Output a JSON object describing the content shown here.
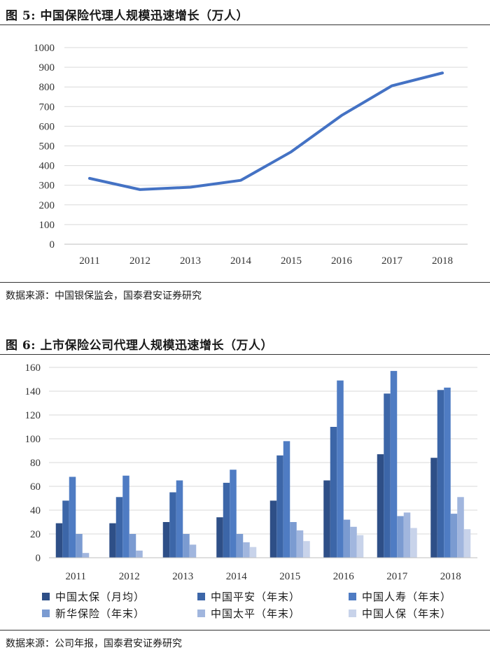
{
  "figure1": {
    "title": "图 5: 中国保险代理人规模迅速增长（万人）",
    "source": "数据来源：中国银保监会，国泰君安证券研究"
  },
  "figure2": {
    "title": "图 6: 上市保险公司代理人规模迅速增长（万人）",
    "source": "数据来源：公司年报，国泰君安证券研究"
  },
  "chart_data": [
    {
      "type": "line",
      "title": "",
      "xlabel": "",
      "ylabel": "",
      "x": [
        "2011",
        "2012",
        "2013",
        "2014",
        "2015",
        "2016",
        "2017",
        "2018"
      ],
      "series": [
        {
          "values": [
            335,
            278,
            290,
            325,
            470,
            655,
            806,
            871
          ],
          "color": "#4472c4"
        }
      ],
      "ylim": [
        0,
        1000
      ],
      "yticks": [
        0,
        100,
        200,
        300,
        400,
        500,
        600,
        700,
        800,
        900,
        1000
      ],
      "grid": true
    },
    {
      "type": "bar",
      "title": "",
      "xlabel": "",
      "ylabel": "",
      "categories": [
        "2011",
        "2012",
        "2013",
        "2014",
        "2015",
        "2016",
        "2017",
        "2018"
      ],
      "series": [
        {
          "name": "中国太保（月均）",
          "values": [
            29,
            29,
            30,
            34,
            48,
            65,
            87,
            84
          ],
          "color": "#2e4f87"
        },
        {
          "name": "中国平安（年末）",
          "values": [
            48,
            51,
            55,
            63,
            86,
            110,
            138,
            141
          ],
          "color": "#3c66a8"
        },
        {
          "name": "中国人寿（年末）",
          "values": [
            68,
            69,
            65,
            74,
            98,
            149,
            157,
            143
          ],
          "color": "#4f7cc3"
        },
        {
          "name": "新华保险（年末）",
          "values": [
            20,
            20,
            20,
            20,
            30,
            32,
            35,
            37
          ],
          "color": "#7b9bd1"
        },
        {
          "name": "中国太平（年末）",
          "values": [
            4,
            6,
            11,
            13,
            23,
            26,
            38,
            51
          ],
          "color": "#a1b6de"
        },
        {
          "name": "中国人保（年末）",
          "values": [
            null,
            null,
            null,
            9,
            14,
            19,
            25,
            24
          ],
          "color": "#c8d3ea"
        }
      ],
      "ylim": [
        0,
        160
      ],
      "yticks": [
        0,
        20,
        40,
        60,
        80,
        100,
        120,
        140,
        160
      ],
      "grid": true,
      "legend": "bottom"
    }
  ]
}
